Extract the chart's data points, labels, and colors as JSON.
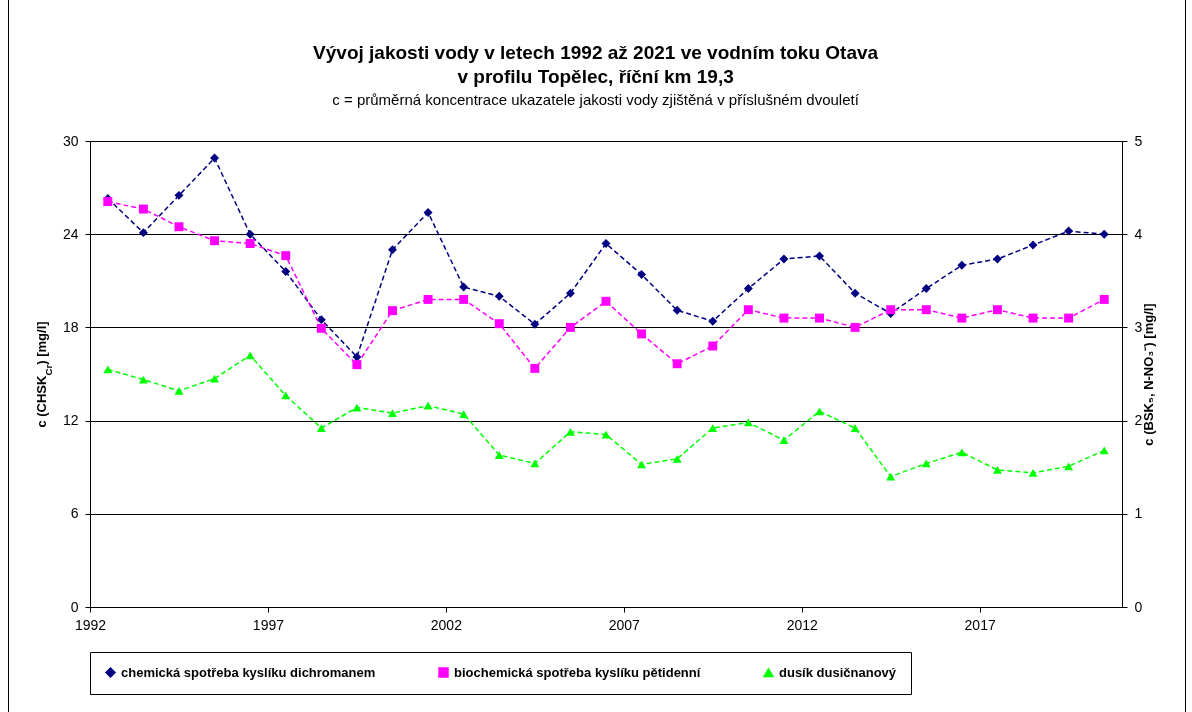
{
  "chart_data": {
    "type": "line",
    "title": "Vývoj jakosti vody v letech 1992 až 2021 ve vodním toku Otava\nv profilu Topělec, říční km 19,3",
    "subtitle": "c = průměrná koncentrace ukazatele jakosti vody zjištěná v příslušném dvouletí",
    "ylabel": "c (CHSK$_{Cr}$) [mg/l]",
    "y2label": "c (BSK₅, N-NO₃⁻) [mg/l]",
    "x": [
      1992.5,
      1993.5,
      1994.5,
      1995.5,
      1996.5,
      1997.5,
      1998.5,
      1999.5,
      2000.5,
      2001.5,
      2002.5,
      2003.5,
      2004.5,
      2005.5,
      2006.5,
      2007.5,
      2008.5,
      2009.5,
      2010.5,
      2011.5,
      2012.5,
      2013.5,
      2014.5,
      2015.5,
      2016.5,
      2017.5,
      2018.5,
      2019.5,
      2020.5
    ],
    "xlim": [
      1992,
      2021
    ],
    "xticks": [
      1992,
      1997,
      2002,
      2007,
      2012,
      2017
    ],
    "ylim": [
      0,
      30
    ],
    "yticks": [
      0,
      6,
      12,
      18,
      24,
      30
    ],
    "y2lim": [
      0,
      5
    ],
    "y2ticks": [
      0,
      1,
      2,
      3,
      4,
      5
    ],
    "grid": "y",
    "legend": "bottom",
    "line_style": "dashed",
    "series": [
      {
        "name": "chemická spotřeba kyslíku dichromanem",
        "color": "#000080",
        "marker": "diamond",
        "values": [
          26.3,
          24.1,
          26.5,
          28.9,
          24.0,
          21.6,
          18.5,
          16.1,
          23.0,
          25.4,
          20.6,
          20.0,
          18.2,
          20.2,
          23.4,
          21.4,
          19.1,
          18.4,
          20.5,
          22.4,
          22.6,
          20.2,
          18.9,
          20.5,
          22.0,
          22.4,
          23.3,
          24.2,
          24.0
        ]
      },
      {
        "name": "biochemická spotřeba kyslíku pětidenní",
        "color": "#ff00ff",
        "marker": "square",
        "axis": "y2",
        "values": [
          4.35,
          4.27,
          4.08,
          3.93,
          3.9,
          3.77,
          2.99,
          2.6,
          3.18,
          3.3,
          3.3,
          3.04,
          2.56,
          3.0,
          3.28,
          2.93,
          2.61,
          2.8,
          3.19,
          3.1,
          3.1,
          3.0,
          3.19,
          3.19,
          3.1,
          3.19,
          3.1,
          3.1,
          3.3
        ]
      },
      {
        "name": "dusík dusičnanový",
        "color": "#00ff00",
        "marker": "triangle",
        "axis": "y2",
        "values": [
          2.55,
          2.44,
          2.32,
          2.45,
          2.7,
          2.27,
          1.92,
          2.14,
          2.08,
          2.16,
          2.07,
          1.63,
          1.54,
          1.88,
          1.85,
          1.53,
          1.59,
          1.92,
          1.98,
          1.79,
          2.1,
          1.92,
          1.4,
          1.54,
          1.66,
          1.47,
          1.44,
          1.51,
          1.68
        ]
      }
    ]
  }
}
